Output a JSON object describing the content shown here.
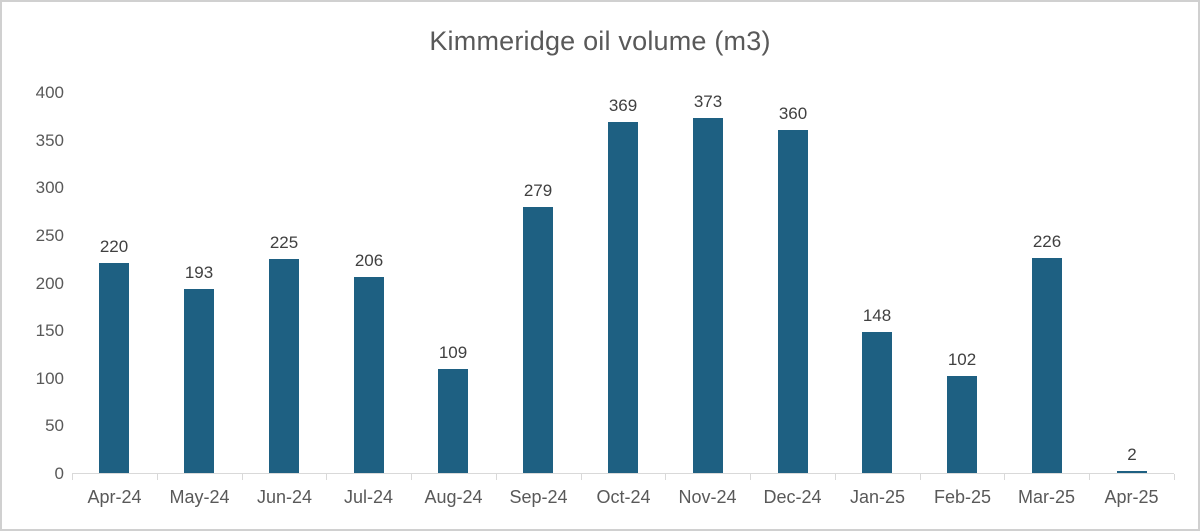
{
  "chart_data": {
    "type": "bar",
    "title": "Kimmeridge oil volume (m3)",
    "categories": [
      "Apr-24",
      "May-24",
      "Jun-24",
      "Jul-24",
      "Aug-24",
      "Sep-24",
      "Oct-24",
      "Nov-24",
      "Dec-24",
      "Jan-25",
      "Feb-25",
      "Mar-25",
      "Apr-25"
    ],
    "values": [
      220,
      193,
      225,
      206,
      109,
      279,
      369,
      373,
      360,
      148,
      102,
      226,
      2
    ],
    "xlabel": "",
    "ylabel": "",
    "ylim": [
      0,
      400
    ],
    "yticks": [
      0,
      50,
      100,
      150,
      200,
      250,
      300,
      350,
      400
    ],
    "grid": false,
    "legend": "none",
    "data_labels_shown": true,
    "colors": {
      "bar": "#1E6082",
      "title_text": "#595959",
      "axis_text": "#595959",
      "data_label_text": "#404040",
      "axis_line": "#d9d9d9",
      "frame_border": "#d0d0d0",
      "background": "#ffffff"
    }
  }
}
